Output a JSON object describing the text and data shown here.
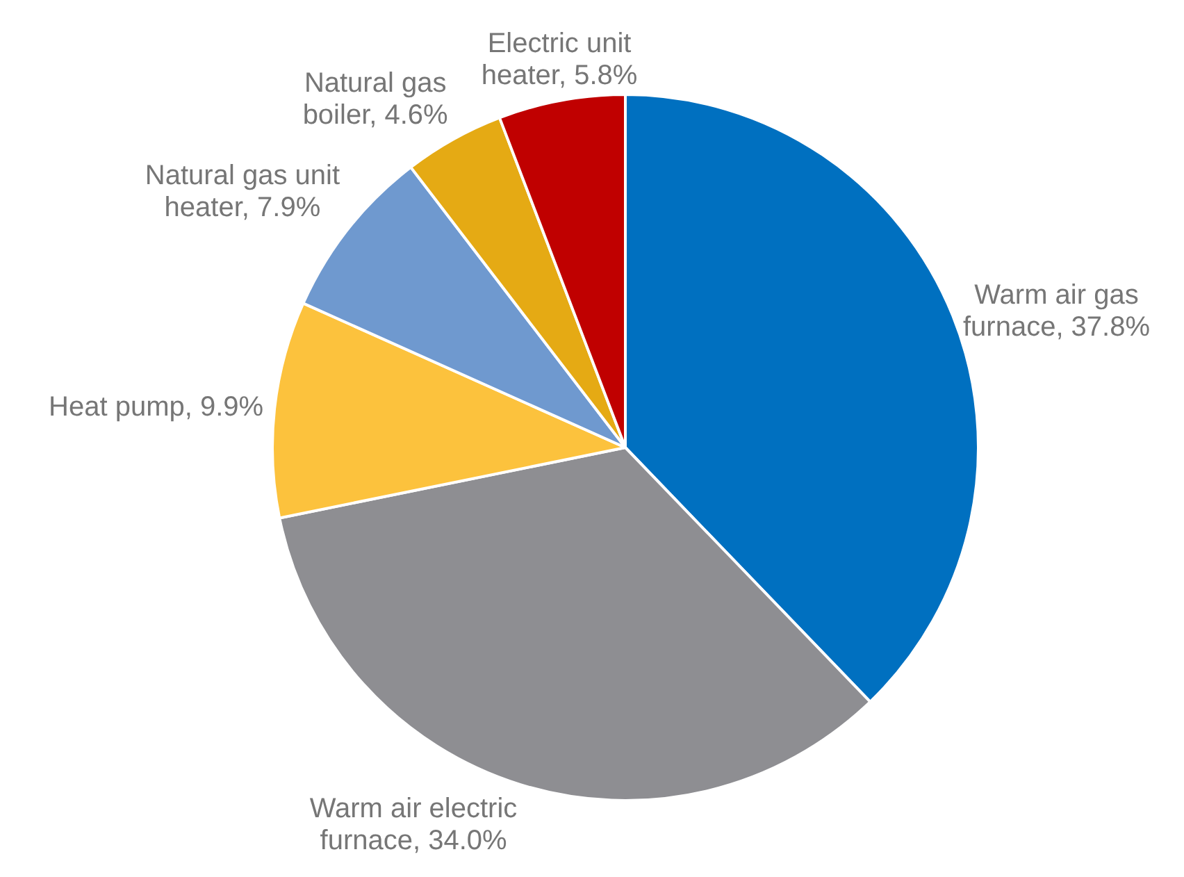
{
  "chart_data": {
    "type": "pie",
    "categories": [
      "Warm air gas furnace",
      "Warm air electric furnace",
      "Heat pump",
      "Natural gas unit heater",
      "Natural gas boiler",
      "Electric unit heater"
    ],
    "values": [
      37.8,
      34.0,
      9.9,
      7.9,
      4.6,
      5.8
    ],
    "colors": [
      "#0070c0",
      "#8e8e92",
      "#fcc23d",
      "#6f99cf",
      "#e5aa14",
      "#c00000"
    ],
    "value_labels": [
      "37.8%",
      "34.0%",
      "9.9%",
      "7.9%",
      "4.6%",
      "5.8%"
    ]
  }
}
